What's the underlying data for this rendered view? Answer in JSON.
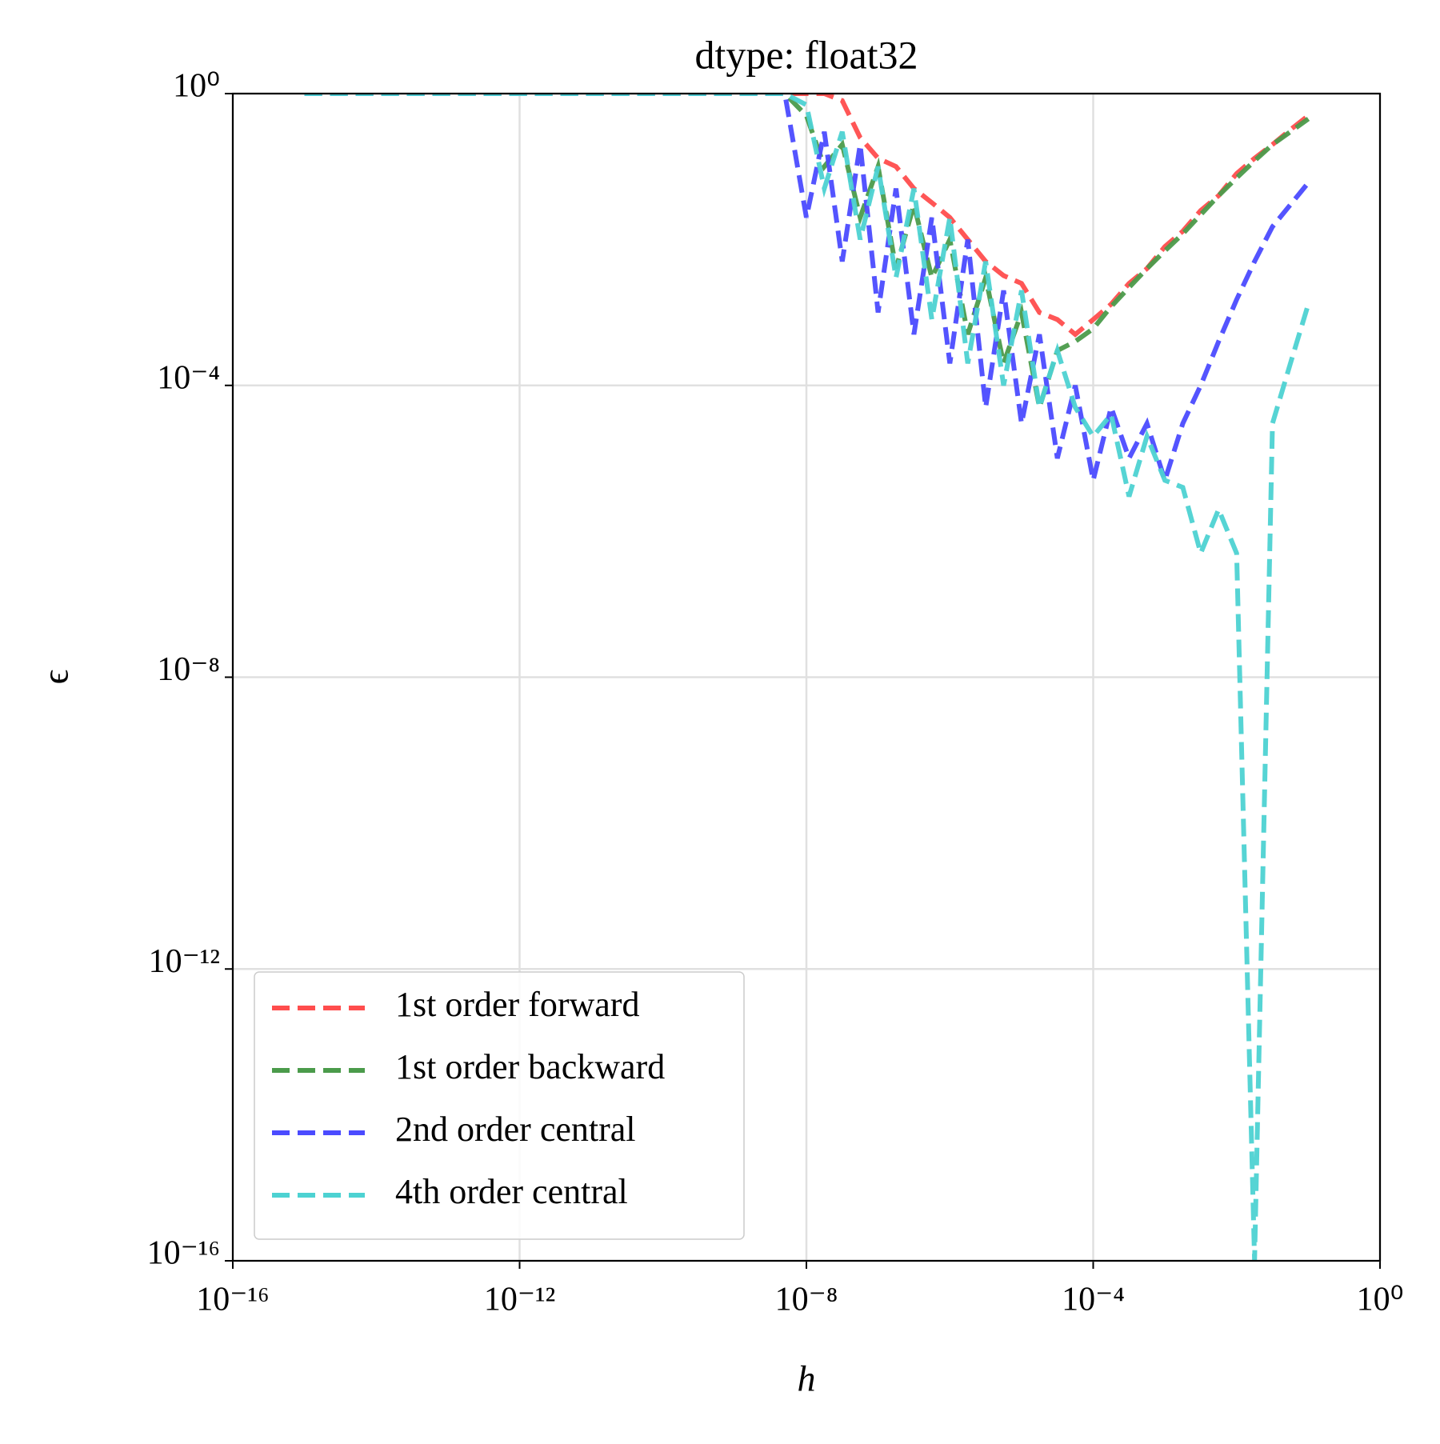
{
  "chart_data": {
    "type": "line",
    "title": "dtype: float32",
    "x_label": "h",
    "y_label": "ϵ",
    "log_x": true,
    "log_y": true,
    "grid": true,
    "legend": "lower left",
    "xlim": [
      1e-16,
      1
    ],
    "ylim": [
      1e-16,
      1
    ],
    "xticks": [
      {
        "value": 1e-16,
        "label": "10⁻¹⁶"
      },
      {
        "value": 1e-12,
        "label": "10⁻¹²"
      },
      {
        "value": 1e-08,
        "label": "10⁻⁸"
      },
      {
        "value": 0.0001,
        "label": "10⁻⁴"
      },
      {
        "value": 1,
        "label": "10⁰"
      }
    ],
    "yticks": [
      {
        "value": 1e-16,
        "label": "10⁻¹⁶"
      },
      {
        "value": 1e-12,
        "label": "10⁻¹²"
      },
      {
        "value": 1e-08,
        "label": "10⁻⁸"
      },
      {
        "value": 0.0001,
        "label": "10⁻⁴"
      },
      {
        "value": 1,
        "label": "10⁰"
      }
    ],
    "x": [
      1e-15,
      1e-14,
      1e-13,
      1e-12,
      1e-11,
      1e-10,
      1e-09,
      5e-09,
      1e-08,
      1.778e-08,
      3.162e-08,
      5.623e-08,
      1e-07,
      1.778e-07,
      3.162e-07,
      5.623e-07,
      1e-06,
      1.778e-06,
      3.162e-06,
      5.623e-06,
      1e-05,
      1.778e-05,
      3.162e-05,
      5.623e-05,
      0.0001,
      0.0001778,
      0.0003162,
      0.0005623,
      0.001,
      0.001778,
      0.003162,
      0.005623,
      0.01,
      0.01778,
      0.03162,
      0.05623,
      0.1
    ],
    "series": [
      {
        "name": "1st order forward",
        "color": "#ff4d4d",
        "values": [
          1,
          1,
          1,
          1,
          1,
          1,
          1,
          1,
          1,
          1,
          0.8,
          0.25,
          0.13,
          0.1,
          0.05,
          0.032,
          0.02,
          0.01,
          0.005,
          0.0032,
          0.0025,
          0.001,
          0.0008,
          0.0005,
          0.0008,
          0.0013,
          0.0025,
          0.004,
          0.008,
          0.013,
          0.025,
          0.04,
          0.08,
          0.13,
          0.2,
          0.32,
          0.5
        ]
      },
      {
        "name": "1st order backward",
        "color": "#4b9b4b",
        "values": [
          1,
          1,
          1,
          1,
          1,
          1,
          1,
          1,
          0.5,
          0.1,
          0.2,
          0.02,
          0.1,
          0.004,
          0.03,
          0.003,
          0.01,
          0.0005,
          0.003,
          0.0002,
          0.001,
          5e-05,
          0.0003,
          0.0004,
          0.0006,
          0.0012,
          0.0022,
          0.004,
          0.007,
          0.012,
          0.022,
          0.04,
          0.07,
          0.12,
          0.2,
          0.3,
          0.45
        ]
      },
      {
        "name": "2nd order central",
        "color": "#4b4bff",
        "values": [
          1,
          1,
          1,
          1,
          1,
          1,
          1,
          1,
          0.02,
          0.3,
          0.005,
          0.2,
          0.001,
          0.05,
          0.0005,
          0.02,
          0.0002,
          0.01,
          5e-05,
          0.002,
          3e-05,
          0.0005,
          1e-05,
          0.0001,
          5e-06,
          5e-05,
          1e-05,
          3e-05,
          5e-06,
          3e-05,
          0.0001,
          0.0004,
          0.0015,
          0.005,
          0.015,
          0.03,
          0.06
        ]
      },
      {
        "name": "4th order central",
        "color": "#4dd2d2",
        "values": [
          1,
          1,
          1,
          1,
          1,
          1,
          1,
          1,
          0.7,
          0.05,
          0.3,
          0.01,
          0.1,
          0.003,
          0.05,
          0.0008,
          0.02,
          0.0002,
          0.005,
          0.0001,
          0.002,
          5e-05,
          0.0003,
          5e-05,
          2e-05,
          4e-05,
          3e-06,
          2e-05,
          5e-06,
          4e-06,
          5e-07,
          2e-06,
          5e-07,
          1e-16,
          3e-05,
          0.0002,
          0.0013
        ]
      }
    ]
  }
}
